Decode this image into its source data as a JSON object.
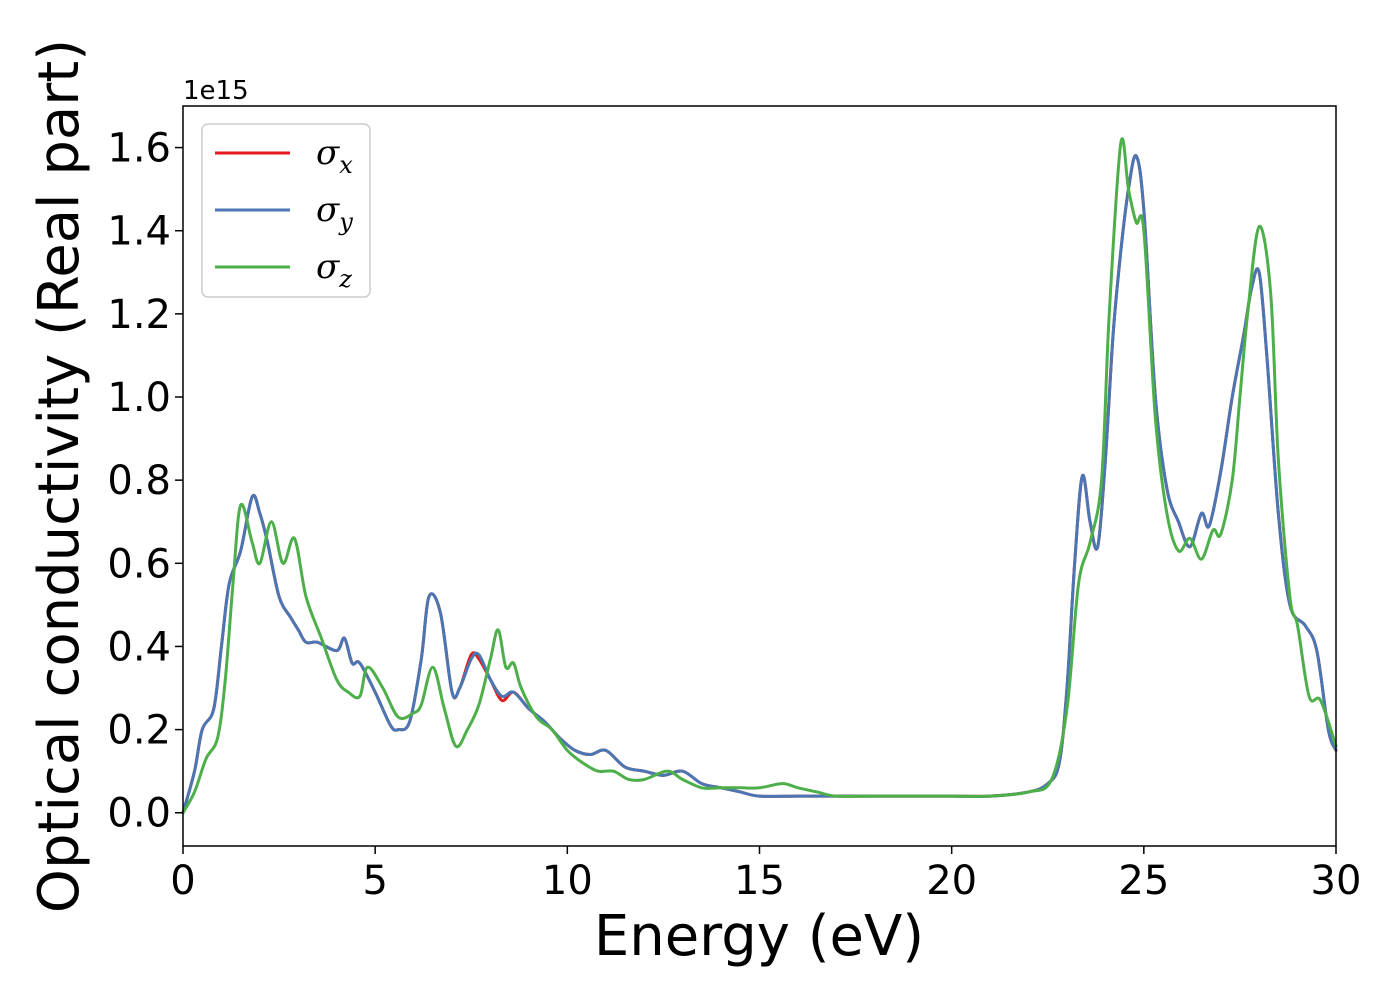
{
  "chart_data": {
    "type": "line",
    "xlabel": "Energy (eV)",
    "ylabel": "Optical conductivity (Real part)",
    "y_scale_label": "1e15",
    "xlim": [
      0,
      30
    ],
    "ylim": [
      -0.08,
      1.7
    ],
    "xticks": [
      0,
      5,
      10,
      15,
      20,
      25,
      30
    ],
    "yticks": [
      0.0,
      0.2,
      0.4,
      0.6,
      0.8,
      1.0,
      1.2,
      1.4,
      1.6
    ],
    "ytick_labels": [
      "0.0",
      "0.2",
      "0.4",
      "0.6",
      "0.8",
      "1.0",
      "1.2",
      "1.4",
      "1.6"
    ],
    "grid": false,
    "legend_position": "top-left",
    "series": [
      {
        "name": "σx",
        "symbol": "σ",
        "subscript": "x",
        "color": "#e41a1c",
        "x": [
          0,
          0.3,
          0.5,
          0.8,
          1.0,
          1.2,
          1.5,
          1.8,
          2.0,
          2.2,
          2.5,
          2.8,
          3.0,
          3.2,
          3.5,
          4.0,
          4.2,
          4.4,
          4.6,
          5.0,
          5.4,
          5.6,
          5.9,
          6.2,
          6.4,
          6.7,
          7.0,
          7.2,
          7.5,
          7.7,
          8.0,
          8.3,
          8.6,
          9.0,
          9.4,
          9.8,
          10.2,
          10.6,
          11.0,
          11.5,
          12.0,
          12.5,
          13.0,
          13.5,
          14.0,
          14.5,
          15.0,
          16.0,
          17.0,
          18.0,
          19.0,
          20.0,
          21.0,
          22.0,
          22.5,
          22.8,
          23.0,
          23.2,
          23.4,
          23.6,
          23.8,
          24.0,
          24.2,
          24.4,
          24.6,
          24.8,
          25.0,
          25.3,
          25.6,
          25.9,
          26.2,
          26.5,
          26.7,
          27.0,
          27.3,
          27.6,
          27.8,
          28.0,
          28.2,
          28.5,
          28.8,
          29.2,
          29.5,
          29.8,
          30.0
        ],
        "y": [
          0.0,
          0.1,
          0.2,
          0.25,
          0.4,
          0.55,
          0.63,
          0.76,
          0.72,
          0.65,
          0.52,
          0.47,
          0.44,
          0.41,
          0.41,
          0.39,
          0.42,
          0.36,
          0.36,
          0.29,
          0.21,
          0.2,
          0.22,
          0.37,
          0.52,
          0.48,
          0.29,
          0.3,
          0.38,
          0.37,
          0.32,
          0.27,
          0.29,
          0.25,
          0.22,
          0.18,
          0.15,
          0.14,
          0.15,
          0.11,
          0.1,
          0.09,
          0.1,
          0.07,
          0.06,
          0.05,
          0.04,
          0.04,
          0.04,
          0.04,
          0.04,
          0.04,
          0.04,
          0.05,
          0.07,
          0.12,
          0.3,
          0.6,
          0.81,
          0.7,
          0.64,
          0.85,
          1.15,
          1.35,
          1.5,
          1.58,
          1.45,
          1.0,
          0.78,
          0.7,
          0.64,
          0.72,
          0.69,
          0.82,
          1.0,
          1.15,
          1.26,
          1.3,
          1.1,
          0.72,
          0.5,
          0.45,
          0.39,
          0.2,
          0.15
        ]
      },
      {
        "name": "σy",
        "symbol": "σ",
        "subscript": "y",
        "color": "#4a77b4",
        "x": [
          0,
          0.3,
          0.5,
          0.8,
          1.0,
          1.2,
          1.5,
          1.8,
          2.0,
          2.2,
          2.5,
          2.8,
          3.0,
          3.2,
          3.5,
          4.0,
          4.2,
          4.4,
          4.6,
          5.0,
          5.4,
          5.6,
          5.9,
          6.2,
          6.4,
          6.7,
          7.0,
          7.2,
          7.5,
          7.7,
          8.0,
          8.3,
          8.6,
          9.0,
          9.4,
          9.8,
          10.2,
          10.6,
          11.0,
          11.5,
          12.0,
          12.5,
          13.0,
          13.5,
          14.0,
          14.5,
          15.0,
          16.0,
          17.0,
          18.0,
          19.0,
          20.0,
          21.0,
          22.0,
          22.5,
          22.8,
          23.0,
          23.2,
          23.4,
          23.6,
          23.8,
          24.0,
          24.2,
          24.4,
          24.6,
          24.8,
          25.0,
          25.3,
          25.6,
          25.9,
          26.2,
          26.5,
          26.7,
          27.0,
          27.3,
          27.6,
          27.8,
          28.0,
          28.2,
          28.5,
          28.8,
          29.2,
          29.5,
          29.8,
          30.0
        ],
        "y": [
          0.0,
          0.1,
          0.2,
          0.25,
          0.4,
          0.55,
          0.63,
          0.76,
          0.72,
          0.65,
          0.52,
          0.47,
          0.44,
          0.41,
          0.41,
          0.39,
          0.42,
          0.36,
          0.36,
          0.29,
          0.21,
          0.2,
          0.22,
          0.37,
          0.52,
          0.48,
          0.29,
          0.3,
          0.37,
          0.38,
          0.32,
          0.28,
          0.29,
          0.25,
          0.22,
          0.18,
          0.15,
          0.14,
          0.15,
          0.11,
          0.1,
          0.09,
          0.1,
          0.07,
          0.06,
          0.05,
          0.04,
          0.04,
          0.04,
          0.04,
          0.04,
          0.04,
          0.04,
          0.05,
          0.07,
          0.12,
          0.3,
          0.6,
          0.81,
          0.7,
          0.64,
          0.85,
          1.15,
          1.35,
          1.5,
          1.58,
          1.45,
          1.0,
          0.78,
          0.7,
          0.64,
          0.72,
          0.69,
          0.82,
          1.0,
          1.15,
          1.26,
          1.3,
          1.1,
          0.72,
          0.5,
          0.45,
          0.39,
          0.2,
          0.15
        ]
      },
      {
        "name": "σz",
        "symbol": "σ",
        "subscript": "z",
        "color": "#4daf4a",
        "x": [
          0,
          0.3,
          0.6,
          0.9,
          1.1,
          1.3,
          1.5,
          1.8,
          2.0,
          2.3,
          2.6,
          2.9,
          3.2,
          3.6,
          4.0,
          4.3,
          4.6,
          4.8,
          5.2,
          5.6,
          6.0,
          6.2,
          6.5,
          6.8,
          7.1,
          7.4,
          7.7,
          8.0,
          8.2,
          8.4,
          8.6,
          8.8,
          9.2,
          9.6,
          10.0,
          10.4,
          10.8,
          11.2,
          11.6,
          12.0,
          12.6,
          13.0,
          13.5,
          14.0,
          14.5,
          15.0,
          15.6,
          16.0,
          16.5,
          17.0,
          18.0,
          19.0,
          20.0,
          21.0,
          22.0,
          22.6,
          23.0,
          23.3,
          23.6,
          23.9,
          24.1,
          24.4,
          24.6,
          24.8,
          25.0,
          25.3,
          25.6,
          25.9,
          26.2,
          26.5,
          26.8,
          27.0,
          27.3,
          27.5,
          27.7,
          28.0,
          28.3,
          28.5,
          28.8,
          29.0,
          29.3,
          29.6,
          30.0
        ],
        "y": [
          0.0,
          0.05,
          0.13,
          0.18,
          0.32,
          0.55,
          0.74,
          0.65,
          0.6,
          0.7,
          0.6,
          0.66,
          0.52,
          0.42,
          0.32,
          0.29,
          0.28,
          0.35,
          0.3,
          0.23,
          0.24,
          0.26,
          0.35,
          0.25,
          0.16,
          0.2,
          0.26,
          0.37,
          0.44,
          0.35,
          0.36,
          0.3,
          0.23,
          0.2,
          0.15,
          0.12,
          0.1,
          0.1,
          0.08,
          0.08,
          0.1,
          0.08,
          0.06,
          0.06,
          0.06,
          0.06,
          0.07,
          0.06,
          0.05,
          0.04,
          0.04,
          0.04,
          0.04,
          0.04,
          0.05,
          0.08,
          0.25,
          0.55,
          0.65,
          0.8,
          1.2,
          1.61,
          1.5,
          1.42,
          1.4,
          0.95,
          0.72,
          0.63,
          0.66,
          0.61,
          0.68,
          0.67,
          0.8,
          1.0,
          1.2,
          1.41,
          1.25,
          0.85,
          0.52,
          0.45,
          0.28,
          0.27,
          0.16
        ]
      }
    ]
  }
}
